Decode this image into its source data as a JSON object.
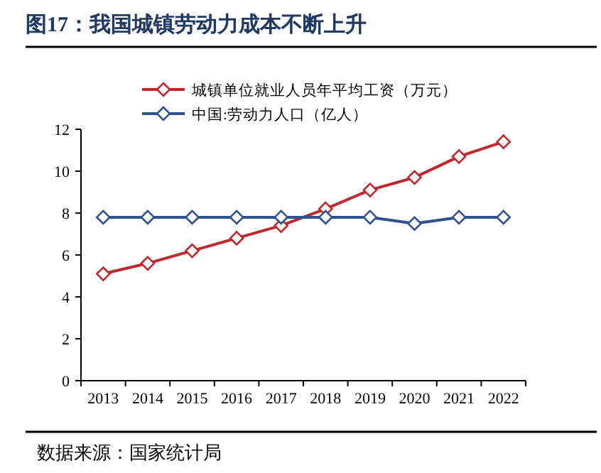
{
  "chart_data": {
    "type": "line",
    "title": "图17：我国城镇劳动力成本不断上升",
    "categories": [
      "2013",
      "2014",
      "2015",
      "2016",
      "2017",
      "2018",
      "2019",
      "2020",
      "2021",
      "2022"
    ],
    "series": [
      {
        "name": "城镇单位就业人员年平均工资（万元）",
        "color": "#c0282d",
        "values": [
          5.1,
          5.6,
          6.2,
          6.8,
          7.4,
          8.2,
          9.1,
          9.7,
          10.7,
          11.4
        ]
      },
      {
        "name": "中国:劳动力人口（亿人）",
        "color": "#2f528f",
        "values": [
          7.8,
          7.8,
          7.8,
          7.8,
          7.8,
          7.8,
          7.8,
          7.5,
          7.8,
          7.8
        ]
      }
    ],
    "ylim": [
      0,
      12
    ],
    "yticks": [
      0,
      2,
      4,
      6,
      8,
      10,
      12
    ],
    "marker": "diamond",
    "line_style": "solid",
    "legend": "top",
    "grid": false,
    "annotations": [
      "数据来源：国家统计局"
    ]
  }
}
